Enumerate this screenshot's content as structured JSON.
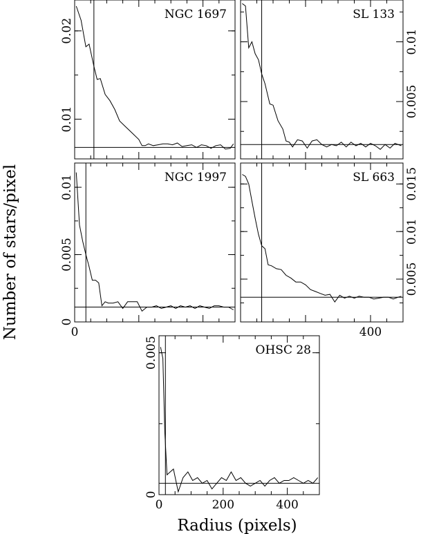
{
  "figure": {
    "ylabel": "Number of stars/pixel",
    "xlabel": "Radius (pixels)"
  },
  "chart_data": [
    {
      "type": "line",
      "title": "NGC 1697",
      "xlim": [
        0,
        500
      ],
      "ylim": [
        0.0055,
        0.0235
      ],
      "y_ticks": [
        0.01,
        0.02
      ],
      "y_tick_labels": [
        "0.01",
        "0.02"
      ],
      "y_axis_side": "left",
      "x_ticks": [
        0,
        200,
        400
      ],
      "x_tick_labels": [],
      "vline_x": 60,
      "background": 0.0068,
      "x": [
        5,
        20,
        35,
        45,
        60,
        70,
        80,
        95,
        110,
        125,
        140,
        160,
        180,
        200,
        210,
        220,
        230,
        245,
        260,
        275,
        290,
        305,
        320,
        335,
        350,
        365,
        380,
        395,
        410,
        425,
        440,
        455,
        470,
        485,
        495
      ],
      "values": [
        0.0228,
        0.0212,
        0.0182,
        0.0185,
        0.016,
        0.0145,
        0.0146,
        0.0128,
        0.0121,
        0.0111,
        0.0098,
        0.0091,
        0.0084,
        0.0077,
        0.007,
        0.007,
        0.0072,
        0.007,
        0.0071,
        0.0072,
        0.0072,
        0.0071,
        0.0073,
        0.0069,
        0.007,
        0.0071,
        0.0068,
        0.0071,
        0.007,
        0.0067,
        0.007,
        0.0071,
        0.0066,
        0.0067,
        0.0072
      ]
    },
    {
      "type": "line",
      "title": "SL 133",
      "xlim": [
        0,
        500
      ],
      "ylim": [
        0.0002,
        0.0135
      ],
      "y_ticks": [
        0.005,
        0.01
      ],
      "y_tick_labels": [
        "0.005",
        "0.01"
      ],
      "y_axis_side": "right",
      "x_ticks": [
        0,
        200,
        400
      ],
      "x_tick_labels": [],
      "vline_x": 65,
      "background": 0.0014,
      "x": [
        5,
        15,
        25,
        35,
        45,
        55,
        65,
        75,
        90,
        100,
        115,
        130,
        140,
        150,
        160,
        175,
        190,
        205,
        220,
        235,
        250,
        265,
        280,
        295,
        310,
        325,
        340,
        355,
        370,
        385,
        400,
        415,
        430,
        445,
        460,
        475,
        495
      ],
      "values": [
        0.0132,
        0.013,
        0.0095,
        0.01,
        0.009,
        0.0085,
        0.0073,
        0.0065,
        0.0048,
        0.0047,
        0.0034,
        0.0027,
        0.0017,
        0.0016,
        0.0012,
        0.0018,
        0.0017,
        0.0011,
        0.0017,
        0.0018,
        0.0014,
        0.0012,
        0.0014,
        0.0013,
        0.0016,
        0.0012,
        0.0016,
        0.0013,
        0.0015,
        0.0012,
        0.0015,
        0.0013,
        0.001,
        0.0014,
        0.0011,
        0.0015,
        0.0013
      ]
    },
    {
      "type": "line",
      "title": "NGC 1997",
      "xlim": [
        0,
        500
      ],
      "ylim": [
        0,
        0.0118
      ],
      "y_ticks": [
        0,
        0.005,
        0.01
      ],
      "y_tick_labels": [
        "0",
        "0.005",
        "0.01"
      ],
      "y_axis_side": "left",
      "x_ticks": [
        0,
        200,
        400
      ],
      "x_tick_labels": [
        "0",
        "",
        ""
      ],
      "vline_x": 35,
      "background": 0.0011,
      "x": [
        5,
        15,
        25,
        35,
        45,
        55,
        65,
        75,
        85,
        95,
        105,
        120,
        135,
        150,
        165,
        180,
        195,
        210,
        225,
        240,
        255,
        270,
        285,
        300,
        315,
        330,
        345,
        360,
        375,
        390,
        405,
        420,
        435,
        450,
        465,
        480,
        495
      ],
      "values": [
        0.0111,
        0.0072,
        0.006,
        0.005,
        0.0041,
        0.0031,
        0.0031,
        0.0029,
        0.0012,
        0.0015,
        0.0014,
        0.0014,
        0.0015,
        0.001,
        0.0015,
        0.0015,
        0.0015,
        0.0008,
        0.0011,
        0.0011,
        0.0012,
        0.001,
        0.0011,
        0.0012,
        0.001,
        0.0012,
        0.0011,
        0.0012,
        0.001,
        0.0012,
        0.0011,
        0.001,
        0.0012,
        0.0012,
        0.0011,
        0.0011,
        0.0009
      ]
    },
    {
      "type": "line",
      "title": "SL 663",
      "xlim": [
        0,
        500
      ],
      "ylim": [
        0.0005,
        0.0172
      ],
      "y_ticks": [
        0.005,
        0.01,
        0.015
      ],
      "y_tick_labels": [
        "0.005",
        "0.01",
        "0.015"
      ],
      "y_axis_side": "right",
      "x_ticks": [
        0,
        200,
        400
      ],
      "x_tick_labels": [
        "",
        "",
        "400"
      ],
      "vline_x": 65,
      "background": 0.0031,
      "x": [
        5,
        15,
        25,
        35,
        45,
        55,
        65,
        75,
        85,
        95,
        110,
        125,
        140,
        155,
        170,
        185,
        200,
        215,
        230,
        245,
        260,
        275,
        290,
        305,
        320,
        335,
        350,
        365,
        380,
        395,
        410,
        425,
        440,
        455,
        470,
        485,
        495
      ],
      "values": [
        0.016,
        0.0158,
        0.015,
        0.0132,
        0.0114,
        0.0097,
        0.0085,
        0.0082,
        0.0065,
        0.0064,
        0.0061,
        0.006,
        0.0054,
        0.0051,
        0.0047,
        0.0047,
        0.0044,
        0.0039,
        0.0037,
        0.0035,
        0.0033,
        0.0034,
        0.0026,
        0.0033,
        0.003,
        0.0032,
        0.003,
        0.0032,
        0.0031,
        0.0031,
        0.0029,
        0.003,
        0.0031,
        0.0031,
        0.0029,
        0.0031,
        0.0032
      ]
    },
    {
      "type": "line",
      "title": "OHSC 28",
      "xlim": [
        0,
        500
      ],
      "ylim": [
        0,
        0.0056
      ],
      "y_ticks": [
        0,
        0.005
      ],
      "y_tick_labels": [
        "0",
        "0.005"
      ],
      "y_axis_side": "left",
      "x_ticks": [
        0,
        200,
        400
      ],
      "x_tick_labels": [
        "0",
        "200",
        "400"
      ],
      "vline_x": 20,
      "background": 0.0004,
      "x": [
        5,
        12,
        18,
        25,
        35,
        45,
        60,
        75,
        90,
        105,
        120,
        135,
        150,
        165,
        180,
        195,
        210,
        225,
        240,
        255,
        270,
        285,
        300,
        315,
        330,
        345,
        360,
        375,
        390,
        405,
        420,
        435,
        450,
        465,
        480,
        495
      ],
      "values": [
        0.0052,
        0.0048,
        0.0022,
        0.0007,
        0.0008,
        0.0009,
        0.0001,
        0.0006,
        0.0008,
        0.0005,
        0.0006,
        0.0004,
        0.0005,
        0.0002,
        0.0004,
        0.0006,
        0.0005,
        0.0008,
        0.0005,
        0.0006,
        0.0004,
        0.0003,
        0.0004,
        0.0005,
        0.0003,
        0.0005,
        0.0006,
        0.0004,
        0.0005,
        0.0005,
        0.0006,
        0.0005,
        0.0004,
        0.0005,
        0.0004,
        0.0006
      ]
    }
  ]
}
